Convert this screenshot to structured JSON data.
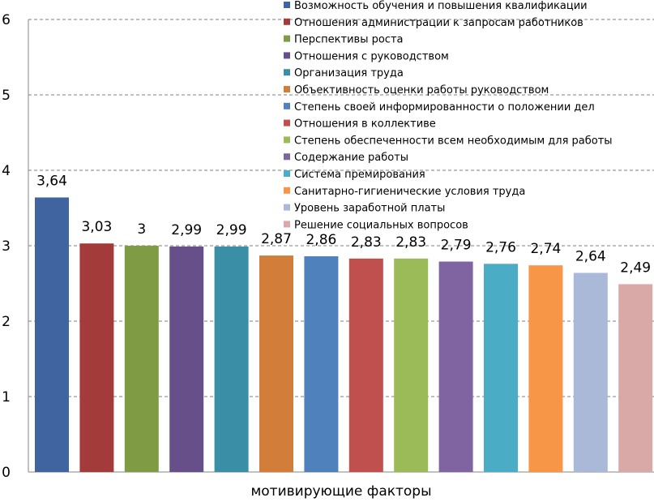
{
  "chart_data": {
    "type": "bar",
    "title": "",
    "xlabel": "мотивирующие факторы",
    "ylabel": "",
    "ylim": [
      0,
      6
    ],
    "yticks": [
      "0",
      "1",
      "2",
      "3",
      "4",
      "5",
      "6"
    ],
    "grid": true,
    "legend_position": "top-right",
    "series": [
      {
        "name": "Возможность обучения и повышения квалификации",
        "value": 3.64,
        "label": "3,64",
        "color": "#3F64A0"
      },
      {
        "name": "Отношения администрации к запросам работников",
        "value": 3.03,
        "label": "3,03",
        "color": "#A33B3A"
      },
      {
        "name": "Перспективы роста",
        "value": 3.0,
        "label": "3",
        "color": "#7F9C44"
      },
      {
        "name": "Отношения с руководством",
        "value": 2.99,
        "label": "2,99",
        "color": "#67508A"
      },
      {
        "name": "Организация труда",
        "value": 2.99,
        "label": "2,99",
        "color": "#3A8EA5"
      },
      {
        "name": "Объективность оценки работы руководством",
        "value": 2.87,
        "label": "2,87",
        "color": "#D27D3A"
      },
      {
        "name": "Степень своей информированности о положении дел",
        "value": 2.86,
        "label": "2,86",
        "color": "#4F81BD"
      },
      {
        "name": "Отношения в коллективе",
        "value": 2.83,
        "label": "2,83",
        "color": "#C0504D"
      },
      {
        "name": "Степень обеспеченности всем необходимым для работы",
        "value": 2.83,
        "label": "2,83",
        "color": "#9BBB59"
      },
      {
        "name": "Содержание работы",
        "value": 2.79,
        "label": "2,79",
        "color": "#8064A2"
      },
      {
        "name": "Система премирования",
        "value": 2.76,
        "label": "2,76",
        "color": "#4BACC6"
      },
      {
        "name": "Санитарно-гигиенические условия труда",
        "value": 2.74,
        "label": "2,74",
        "color": "#F79646"
      },
      {
        "name": "Уровень заработной платы",
        "value": 2.64,
        "label": "2,64",
        "color": "#AAB9D7"
      },
      {
        "name": "Решение социальных вопросов",
        "value": 2.49,
        "label": "2,49",
        "color": "#D9A9A8"
      }
    ]
  }
}
